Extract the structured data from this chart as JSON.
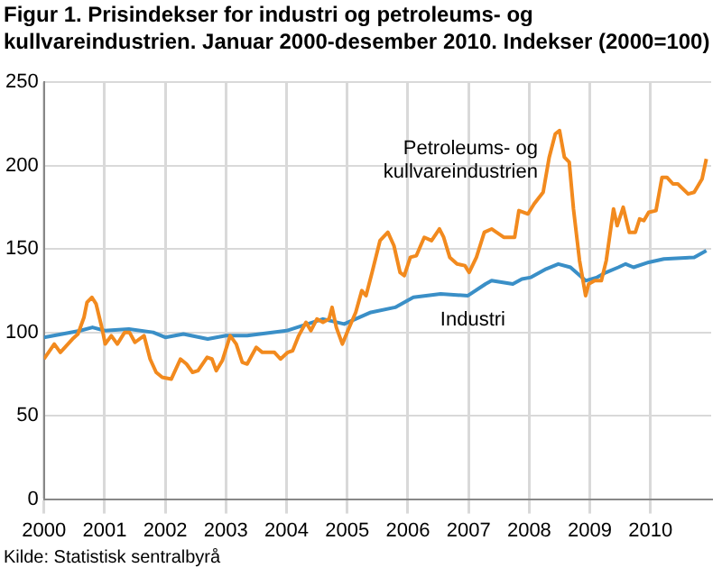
{
  "chart_data": {
    "type": "line",
    "title": "Figur 1. Prisindekser for industri og petroleums- og kullvareindustrien. Januar 2000-desember 2010. Indekser (2000=100)",
    "annotations": [
      "Kilde: Statistisk sentralbyrå"
    ],
    "xlim": [
      2000,
      2011
    ],
    "xticks": [
      2000,
      2001,
      2002,
      2003,
      2004,
      2005,
      2006,
      2007,
      2008,
      2009,
      2010
    ],
    "ylim": [
      0,
      250
    ],
    "yticks": [
      0,
      50,
      100,
      150,
      200,
      250
    ],
    "grid": true,
    "legend": false,
    "marker": "none",
    "line_style": "solid",
    "series": [
      {
        "name": "Petroleums- og kullvareindustrien",
        "color": "#f28a1e",
        "x": [
          2000.0,
          2000.17,
          2000.27,
          2000.47,
          2000.56,
          2000.66,
          2000.71,
          2000.79,
          2000.86,
          2000.96,
          2001.01,
          2001.11,
          2001.21,
          2001.33,
          2001.41,
          2001.5,
          2001.65,
          2001.75,
          2001.85,
          2001.95,
          2002.1,
          2002.25,
          2002.35,
          2002.45,
          2002.54,
          2002.69,
          2002.77,
          2002.84,
          2002.94,
          2003.07,
          2003.17,
          2003.27,
          2003.35,
          2003.5,
          2003.6,
          2003.8,
          2003.9,
          2004.02,
          2004.1,
          2004.2,
          2004.32,
          2004.4,
          2004.5,
          2004.6,
          2004.7,
          2004.75,
          2004.82,
          2004.92,
          2005.01,
          2005.14,
          2005.24,
          2005.31,
          2005.41,
          2005.54,
          2005.67,
          2005.77,
          2005.87,
          2005.94,
          2006.04,
          2006.14,
          2006.21,
          2006.27,
          2006.39,
          2006.52,
          2006.59,
          2006.69,
          2006.81,
          2006.94,
          2007.01,
          2007.13,
          2007.26,
          2007.38,
          2007.58,
          2007.76,
          2007.83,
          2007.98,
          2008.08,
          2008.23,
          2008.33,
          2008.43,
          2008.5,
          2008.58,
          2008.66,
          2008.73,
          2008.83,
          2008.93,
          2008.98,
          2009.08,
          2009.19,
          2009.27,
          2009.39,
          2009.45,
          2009.55,
          2009.65,
          2009.75,
          2009.82,
          2009.89,
          2009.97,
          2010.09,
          2010.19,
          2010.27,
          2010.37,
          2010.45,
          2010.62,
          2010.72,
          2010.85,
          2010.92
        ],
        "values": [
          84,
          93,
          88,
          96,
          99,
          109,
          118,
          121,
          117,
          102,
          93,
          98,
          93,
          100,
          100,
          94,
          98,
          84,
          76,
          73,
          72,
          84,
          81,
          76,
          77,
          85,
          84,
          77,
          83,
          98,
          93,
          82,
          81,
          91,
          88,
          88,
          84,
          88,
          89,
          98,
          106,
          101,
          108,
          106,
          108,
          115,
          103,
          93,
          101,
          112,
          125,
          122,
          136,
          155,
          160,
          152,
          136,
          134,
          145,
          146,
          152,
          157,
          155,
          162,
          157,
          145,
          141,
          140,
          136,
          145,
          160,
          162,
          157,
          157,
          173,
          171,
          177,
          184,
          205,
          219,
          221,
          205,
          202,
          174,
          143,
          122,
          129,
          131,
          131,
          143,
          174,
          164,
          175,
          160,
          160,
          168,
          167,
          172,
          173,
          193,
          193,
          189,
          189,
          183,
          184,
          192,
          204
        ]
      },
      {
        "name": "Industri",
        "color": "#3a8fc7",
        "x": [
          2000.0,
          2000.3,
          2000.6,
          2000.8,
          2001.0,
          2001.4,
          2001.8,
          2002.0,
          2002.3,
          2002.7,
          2003.0,
          2003.35,
          2004.0,
          2004.6,
          2004.95,
          2005.39,
          2005.79,
          2006.09,
          2006.54,
          2006.99,
          2007.28,
          2007.38,
          2007.73,
          2007.88,
          2008.03,
          2008.28,
          2008.48,
          2008.68,
          2008.93,
          2009.12,
          2009.27,
          2009.47,
          2009.59,
          2009.72,
          2009.97,
          2010.22,
          2010.72,
          2010.92
        ],
        "values": [
          97,
          99,
          101,
          103,
          101,
          102,
          100,
          97,
          99,
          96,
          98,
          98,
          101,
          108,
          105,
          112,
          115,
          121,
          123,
          122,
          129,
          131,
          129,
          132,
          133,
          138,
          141,
          139,
          131,
          133,
          136,
          139,
          141,
          139,
          142,
          144,
          145,
          149
        ]
      }
    ]
  }
}
